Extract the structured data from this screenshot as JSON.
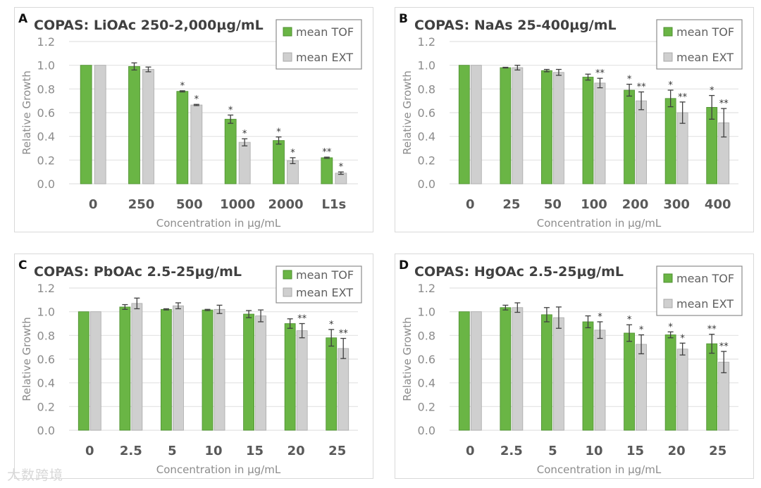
{
  "colors": {
    "tof": "#6ab545",
    "tof_edge": "#4e8f30",
    "ext": "#cfcfcf",
    "ext_edge": "#a9a9a9",
    "grid": "#e2e2e2",
    "text": "#595959",
    "title": "#404040"
  },
  "watermark": "大数跨境",
  "chart_data": [
    {
      "type": "bar",
      "panel_label": "A",
      "title": "COPAS: LiOAc 250-2,000µg/mL",
      "xlabel": "Concentration in µg/mL",
      "ylabel": "Relative Growth",
      "ylim": [
        0,
        1.2
      ],
      "yticks": [
        "0.0",
        "0.2",
        "0.4",
        "0.6",
        "0.8",
        "1.0",
        "1.2"
      ],
      "grid": true,
      "legend_position": "top-right",
      "categories": [
        "0",
        "250",
        "500",
        "1000",
        "2000",
        "L1s"
      ],
      "series": [
        {
          "name": "mean TOF",
          "values": [
            1.0,
            0.99,
            0.78,
            0.545,
            0.365,
            0.22
          ],
          "errors": [
            0,
            0.03,
            0.005,
            0.035,
            0.03,
            0.005
          ],
          "significance": [
            "",
            "",
            "*",
            "*",
            "*",
            "**"
          ]
        },
        {
          "name": "mean EXT",
          "values": [
            1.0,
            0.965,
            0.665,
            0.35,
            0.195,
            0.09
          ],
          "errors": [
            0,
            0.02,
            0.005,
            0.03,
            0.025,
            0.01
          ],
          "significance": [
            "",
            "",
            "*",
            "*",
            "*",
            "*"
          ]
        }
      ]
    },
    {
      "type": "bar",
      "panel_label": "B",
      "title": "COPAS: NaAs 25-400µg/mL",
      "xlabel": "Concentration in µg/mL",
      "ylabel": "Relative Growth",
      "ylim": [
        0,
        1.2
      ],
      "yticks": [
        "0.0",
        "0.2",
        "0.4",
        "0.6",
        "0.8",
        "1.0",
        "1.2"
      ],
      "grid": true,
      "legend_position": "top-right",
      "categories": [
        "0",
        "25",
        "50",
        "100",
        "200",
        "300",
        "400"
      ],
      "series": [
        {
          "name": "mean TOF",
          "values": [
            1.0,
            0.98,
            0.955,
            0.9,
            0.79,
            0.72,
            0.645
          ],
          "errors": [
            0,
            0.003,
            0.01,
            0.025,
            0.05,
            0.07,
            0.1
          ],
          "significance": [
            "",
            "",
            "",
            "",
            "*",
            "*",
            "*"
          ]
        },
        {
          "name": "mean EXT",
          "values": [
            1.0,
            0.98,
            0.94,
            0.85,
            0.7,
            0.6,
            0.515
          ],
          "errors": [
            0,
            0.02,
            0.025,
            0.04,
            0.075,
            0.09,
            0.12
          ],
          "significance": [
            "",
            "",
            "",
            "**",
            "**",
            "**",
            "**"
          ]
        }
      ]
    },
    {
      "type": "bar",
      "panel_label": "C",
      "title": "COPAS: PbOAc 2.5-25µg/mL",
      "xlabel": "Concentration in µg/mL",
      "ylabel": "Relative Growth",
      "ylim": [
        0,
        1.2
      ],
      "yticks": [
        "0.0",
        "0.2",
        "0.4",
        "0.6",
        "0.8",
        "1.0",
        "1.2"
      ],
      "grid": true,
      "legend_position": "top-right",
      "categories": [
        "0",
        "2.5",
        "5",
        "10",
        "15",
        "20",
        "25"
      ],
      "series": [
        {
          "name": "mean TOF",
          "values": [
            1.0,
            1.04,
            1.02,
            1.015,
            0.98,
            0.9,
            0.78
          ],
          "errors": [
            0,
            0.02,
            0.005,
            0.005,
            0.03,
            0.04,
            0.07
          ],
          "significance": [
            "",
            "",
            "",
            "",
            "",
            "",
            "*"
          ]
        },
        {
          "name": "mean EXT",
          "values": [
            1.0,
            1.07,
            1.05,
            1.02,
            0.965,
            0.84,
            0.69
          ],
          "errors": [
            0,
            0.045,
            0.025,
            0.035,
            0.05,
            0.06,
            0.085
          ],
          "significance": [
            "",
            "",
            "",
            "",
            "",
            "**",
            "**"
          ]
        }
      ]
    },
    {
      "type": "bar",
      "panel_label": "D",
      "title": "COPAS: HgOAc 2.5-25µg/mL",
      "xlabel": "Concentration in µg/mL",
      "ylabel": "Relative Growth",
      "ylim": [
        0,
        1.2
      ],
      "yticks": [
        "0.0",
        "0.2",
        "0.4",
        "0.6",
        "0.8",
        "1.0",
        "1.2"
      ],
      "grid": true,
      "legend_position": "top-right",
      "categories": [
        "0",
        "2.5",
        "5",
        "10",
        "15",
        "20",
        "25"
      ],
      "series": [
        {
          "name": "mean TOF",
          "values": [
            1.0,
            1.035,
            0.975,
            0.915,
            0.82,
            0.805,
            0.73
          ],
          "errors": [
            0,
            0.02,
            0.06,
            0.05,
            0.07,
            0.025,
            0.08
          ],
          "significance": [
            "",
            "",
            "",
            "",
            "*",
            "*",
            "**"
          ]
        },
        {
          "name": "mean EXT",
          "values": [
            1.0,
            1.035,
            0.95,
            0.845,
            0.725,
            0.685,
            0.575
          ],
          "errors": [
            0,
            0.04,
            0.09,
            0.07,
            0.08,
            0.05,
            0.09
          ],
          "significance": [
            "",
            "",
            "",
            "*",
            "*",
            "*",
            "**"
          ]
        }
      ]
    }
  ]
}
